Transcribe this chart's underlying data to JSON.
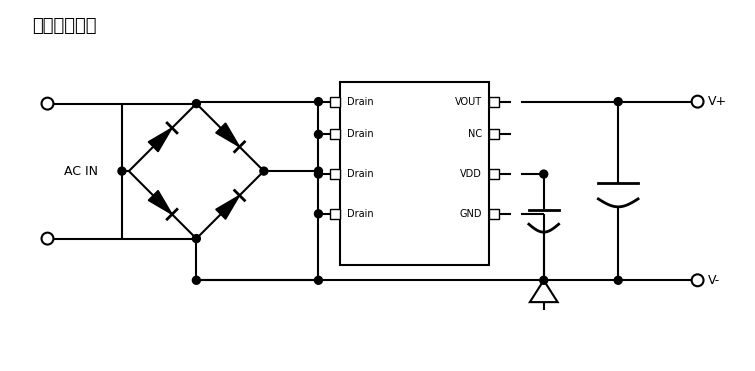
{
  "title": "典型应用电路",
  "title_fontsize": 13,
  "bg_color": "#ffffff",
  "line_color": "#000000",
  "text_color": "#000000",
  "fig_width": 7.55,
  "fig_height": 3.71,
  "dpi": 100,
  "pins_left": [
    "Drain",
    "Drain",
    "Drain",
    "Drain"
  ],
  "pins_right": [
    "VOUT",
    "NC",
    "VDD",
    "GND"
  ],
  "label_ac_in": "AC IN",
  "label_vplus": "V+",
  "label_vminus": "V-",
  "pin_fontsize": 7,
  "label_fontsize": 9
}
